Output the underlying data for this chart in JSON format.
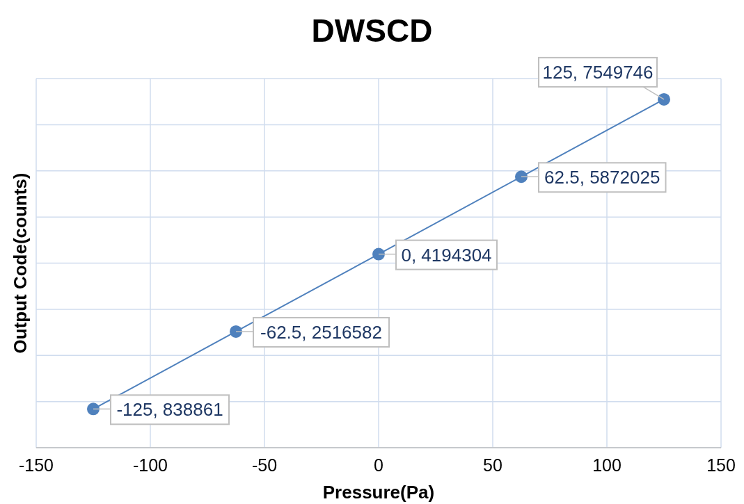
{
  "chart_data": {
    "type": "line",
    "title": "DWSCD",
    "xlabel": "Pressure(Pa)",
    "ylabel": "Output Code(counts)",
    "x": [
      -125,
      -62.5,
      0,
      62.5,
      125
    ],
    "series": [
      {
        "color": "#4f81bd",
        "values": [
          838861,
          2516582,
          4194304,
          5872025,
          7549746
        ],
        "value_labels": [
          "-125, 838861",
          "-62.5, 2516582",
          "0, 4194304",
          "62.5, 5872025",
          "125, 7549746"
        ]
      }
    ],
    "xlim": [
      -150,
      150
    ],
    "xticks": [
      -150,
      -100,
      -50,
      0,
      50,
      100,
      150
    ],
    "ylim": [
      0,
      8000000
    ],
    "yticks": [
      {
        "value": 0,
        "label": null
      },
      {
        "value": 1000000,
        "label": null
      },
      {
        "value": 2000000,
        "label": null
      },
      {
        "value": 3000000,
        "label": null
      },
      {
        "value": 4000000,
        "label": null
      },
      {
        "value": 5000000,
        "label": null
      },
      {
        "value": 6000000,
        "label": null
      },
      {
        "value": 7000000,
        "label": null
      },
      {
        "value": 8000000,
        "label": null
      }
    ],
    "tick_labels": "x",
    "grid": true,
    "marker": "circle",
    "line_style": "solid"
  }
}
